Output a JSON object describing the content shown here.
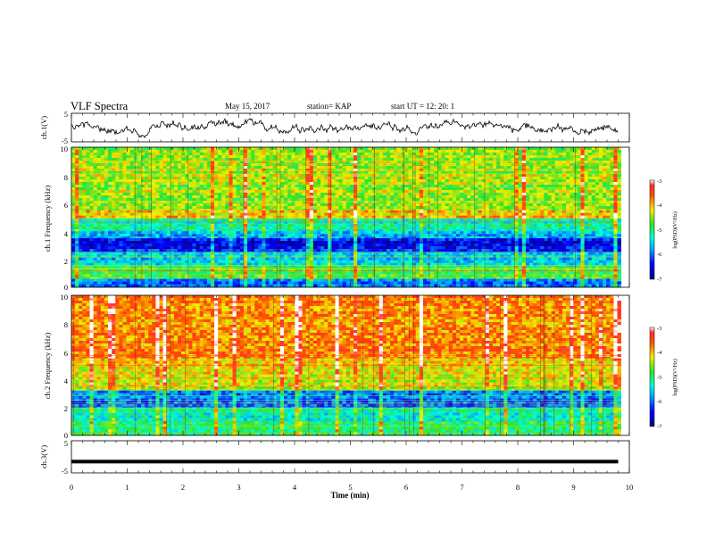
{
  "header": {
    "title": "VLF Spectra",
    "date": "May 15, 2017",
    "station": "station= KAP",
    "start": "start UT = 12: 20: 1"
  },
  "chart_data": [
    {
      "type": "line",
      "name": "ch1-voltage",
      "ylabel": "ch.1(V)",
      "ylim": [
        -5,
        5
      ],
      "y_ticks": [
        "5",
        "-5"
      ],
      "xlim": [
        0,
        10
      ],
      "color": "#000000"
    },
    {
      "type": "heatmap",
      "name": "ch1-spectrogram",
      "ylabel": "ch.1 Frequency (kHz)",
      "ylim": [
        0,
        10
      ],
      "y_ticks": [
        "0",
        "2",
        "4",
        "6",
        "8",
        "10"
      ],
      "xlim": [
        0,
        9.85
      ],
      "colorbar": {
        "label": "log(PSD)(V²/Hz)",
        "range": [
          -7,
          -3
        ],
        "ticks": [
          "-3",
          "-4",
          "-5",
          "-6",
          "-7"
        ]
      },
      "bands_khz": [
        {
          "range": [
            5.5,
            10
          ],
          "level": -4.5
        },
        {
          "range": [
            4.9,
            5.5
          ],
          "level": -4.1
        },
        {
          "range": [
            4.0,
            4.9
          ],
          "level": -5.2
        },
        {
          "range": [
            3.5,
            4.0
          ],
          "level": -5.6
        },
        {
          "range": [
            2.5,
            3.5
          ],
          "level": -6.4
        },
        {
          "range": [
            1.5,
            2.5
          ],
          "level": -5.5
        },
        {
          "range": [
            0.6,
            1.5
          ],
          "level": -4.8
        },
        {
          "range": [
            0,
            0.6
          ],
          "level": -6.0
        }
      ]
    },
    {
      "type": "heatmap",
      "name": "ch2-spectrogram",
      "ylabel": "ch.2 Frequency (kHz)",
      "ylim": [
        0,
        10
      ],
      "y_ticks": [
        "0",
        "2",
        "4",
        "6",
        "8",
        "10"
      ],
      "xlim": [
        0,
        9.85
      ],
      "colorbar": {
        "label": "log(PSD)(V²/Hz)",
        "range": [
          -7,
          -3
        ],
        "ticks": [
          "-3",
          "-4",
          "-5",
          "-6",
          "-7"
        ]
      },
      "bands_khz": [
        {
          "range": [
            5.5,
            10
          ],
          "level": -3.8
        },
        {
          "range": [
            3.5,
            5.5
          ],
          "level": -4.2
        },
        {
          "range": [
            3.2,
            3.5
          ],
          "level": -4.6
        },
        {
          "range": [
            2.0,
            3.2
          ],
          "level": -6.0
        },
        {
          "range": [
            1.0,
            2.0
          ],
          "level": -5.3
        },
        {
          "range": [
            0,
            1.0
          ],
          "level": -5.0
        }
      ]
    },
    {
      "type": "line",
      "name": "ch3-voltage",
      "ylabel": "ch.3(V)",
      "ylim": [
        -5,
        5
      ],
      "y_ticks": [
        "5",
        "-5"
      ],
      "xlim": [
        0,
        10
      ],
      "level_v": -1.5,
      "color": "#000000"
    }
  ],
  "x_axis": {
    "label": "Time (min)",
    "ticks": [
      "0",
      "1",
      "2",
      "3",
      "4",
      "5",
      "6",
      "7",
      "8",
      "9",
      "10"
    ],
    "range": [
      0,
      10
    ]
  }
}
